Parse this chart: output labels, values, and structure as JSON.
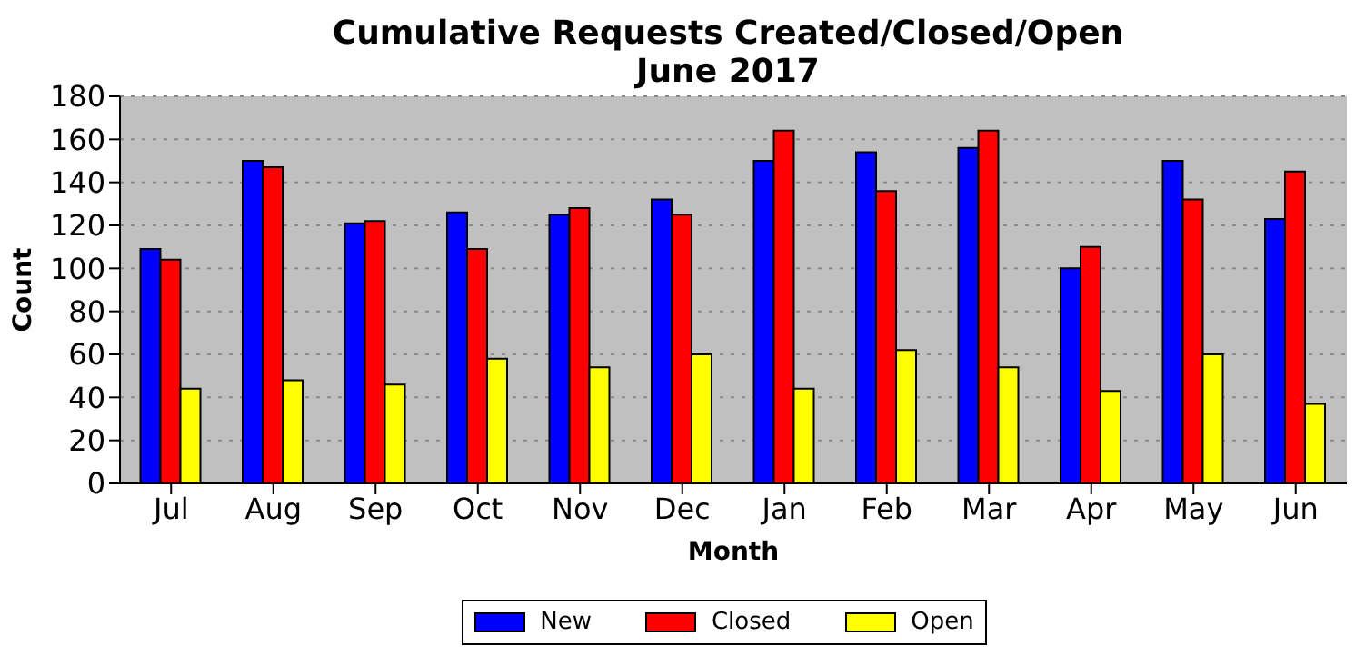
{
  "chart_data": {
    "type": "bar",
    "title": "Cumulative Requests Created/Closed/Open",
    "subtitle": "June 2017",
    "xlabel": "Month",
    "ylabel": "Count",
    "categories": [
      "Jul",
      "Aug",
      "Sep",
      "Oct",
      "Nov",
      "Dec",
      "Jan",
      "Feb",
      "Mar",
      "Apr",
      "May",
      "Jun"
    ],
    "series": [
      {
        "name": "New",
        "color": "#0000ff",
        "values": [
          109,
          150,
          121,
          126,
          125,
          132,
          150,
          154,
          156,
          100,
          150,
          123
        ]
      },
      {
        "name": "Closed",
        "color": "#ff0000",
        "values": [
          104,
          147,
          122,
          109,
          128,
          125,
          164,
          136,
          164,
          110,
          132,
          145
        ]
      },
      {
        "name": "Open",
        "color": "#ffff00",
        "values": [
          44,
          48,
          46,
          58,
          54,
          60,
          44,
          62,
          54,
          43,
          60,
          37
        ]
      }
    ],
    "ylim": [
      0,
      180
    ],
    "yticks": [
      0,
      20,
      40,
      60,
      80,
      100,
      120,
      140,
      160,
      180
    ],
    "grid": "y",
    "legend": "bottom"
  }
}
